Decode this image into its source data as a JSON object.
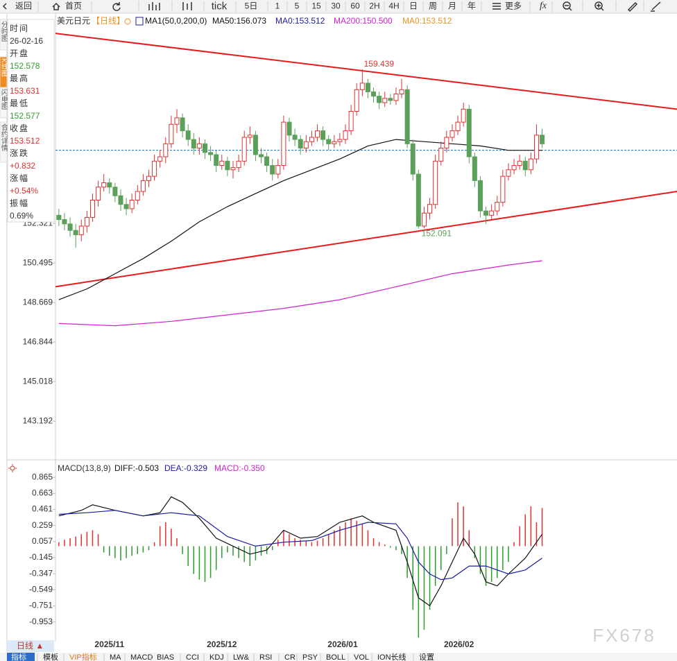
{
  "toolbar": {
    "items": [
      "返回",
      "首页",
      "tick",
      "5日",
      "1",
      "5",
      "15",
      "30",
      "60",
      "2H",
      "4H",
      "日",
      "周",
      "月",
      "年",
      "更多"
    ]
  },
  "sidebar": {
    "tabs": [
      "分时图",
      "K线图",
      "闪电图",
      "合约详情"
    ],
    "active": 1
  },
  "info_panel": {
    "rows": [
      {
        "label": "时间",
        "value": "26-02-16",
        "color": "#333333"
      },
      {
        "label": "开盘",
        "value": "152.578",
        "color": "#2e9a2e"
      },
      {
        "label": "最高",
        "value": "153.631",
        "color": "#e0312f"
      },
      {
        "label": "最低",
        "value": "152.577",
        "color": "#2e9a2e"
      },
      {
        "label": "收盘",
        "value": "153.512",
        "color": "#e0312f"
      },
      {
        "label": "涨跌",
        "value": "+0.832",
        "color": "#e0312f"
      },
      {
        "label": "涨幅",
        "value": "+0.54%",
        "color": "#e0312f"
      },
      {
        "label": "振幅",
        "value": "0.69%",
        "color": "#333333"
      }
    ]
  },
  "chart_data": [
    {
      "type": "candlestick",
      "title": "美元日元",
      "period": "【日线】",
      "up_color": "#e0312f",
      "down_color": "#5aa05a",
      "xlim": [
        -0.6,
        110.0
      ],
      "ylim": [
        141.5,
        162.0
      ],
      "yticks": [
        152.321,
        150.495,
        148.669,
        146.844,
        145.018,
        143.192
      ],
      "last_price_line": 155.7,
      "legend": [
        {
          "text": "MA1(50,0,200,0)",
          "color": "#111111"
        },
        {
          "text": "MA0:153.512",
          "color": "#1a1aa6"
        },
        {
          "text": "MA0:153.512",
          "color": "#f0901e"
        }
      ],
      "candles": [
        [
          152.7,
          153.0,
          152.2,
          152.5
        ],
        [
          152.5,
          152.8,
          152.0,
          152.3
        ],
        [
          152.3,
          152.6,
          151.7,
          152.0
        ],
        [
          152.0,
          152.3,
          151.2,
          151.8
        ],
        [
          151.8,
          152.5,
          151.5,
          152.2
        ],
        [
          152.2,
          152.9,
          151.9,
          152.6
        ],
        [
          152.6,
          153.7,
          152.4,
          153.4
        ],
        [
          153.4,
          154.3,
          153.1,
          154.0
        ],
        [
          154.0,
          154.6,
          153.8,
          154.2
        ],
        [
          154.2,
          154.4,
          153.7,
          154.0
        ],
        [
          154.0,
          154.2,
          153.3,
          153.6
        ],
        [
          153.6,
          153.9,
          152.9,
          153.2
        ],
        [
          153.2,
          153.5,
          152.7,
          153.0
        ],
        [
          153.0,
          153.7,
          152.8,
          153.4
        ],
        [
          153.4,
          154.1,
          153.2,
          153.8
        ],
        [
          153.8,
          154.6,
          153.6,
          154.3
        ],
        [
          154.3,
          154.8,
          154.0,
          154.5
        ],
        [
          154.5,
          155.5,
          154.3,
          155.2
        ],
        [
          155.2,
          155.7,
          154.9,
          155.4
        ],
        [
          155.4,
          156.3,
          155.1,
          156.0
        ],
        [
          156.0,
          157.3,
          155.8,
          156.9
        ],
        [
          156.9,
          157.6,
          156.5,
          157.2
        ],
        [
          157.2,
          157.4,
          156.3,
          156.6
        ],
        [
          156.6,
          156.9,
          155.9,
          156.2
        ],
        [
          156.2,
          156.5,
          155.5,
          155.8
        ],
        [
          155.8,
          156.3,
          155.5,
          156.0
        ],
        [
          156.0,
          156.2,
          155.3,
          155.6
        ],
        [
          155.6,
          155.9,
          155.2,
          155.5
        ],
        [
          155.5,
          155.7,
          154.7,
          155.0
        ],
        [
          155.0,
          155.5,
          154.8,
          155.2
        ],
        [
          155.2,
          155.4,
          154.5,
          154.8
        ],
        [
          154.8,
          155.2,
          154.4,
          154.9
        ],
        [
          154.9,
          155.5,
          154.7,
          155.2
        ],
        [
          155.2,
          156.6,
          155.0,
          156.3
        ],
        [
          156.3,
          156.8,
          156.0,
          156.4
        ],
        [
          156.4,
          156.6,
          155.2,
          155.5
        ],
        [
          155.5,
          155.8,
          155.1,
          155.4
        ],
        [
          155.4,
          155.6,
          154.7,
          155.0
        ],
        [
          155.0,
          155.3,
          154.3,
          154.6
        ],
        [
          154.6,
          155.3,
          154.4,
          155.0
        ],
        [
          155.0,
          157.3,
          154.8,
          157.0
        ],
        [
          157.0,
          157.2,
          156.1,
          156.4
        ],
        [
          156.4,
          156.7,
          155.9,
          156.2
        ],
        [
          156.2,
          156.4,
          155.5,
          155.8
        ],
        [
          155.8,
          156.4,
          155.6,
          156.1
        ],
        [
          156.1,
          156.6,
          155.9,
          156.3
        ],
        [
          156.3,
          156.9,
          156.1,
          156.6
        ],
        [
          156.6,
          156.8,
          155.9,
          156.2
        ],
        [
          156.2,
          156.4,
          155.7,
          156.0
        ],
        [
          156.0,
          156.4,
          155.8,
          156.1
        ],
        [
          156.1,
          156.5,
          155.9,
          156.2
        ],
        [
          156.2,
          156.9,
          156.0,
          156.6
        ],
        [
          156.6,
          157.8,
          156.4,
          157.5
        ],
        [
          157.5,
          158.8,
          157.3,
          158.5
        ],
        [
          158.5,
          159.439,
          158.2,
          158.8
        ],
        [
          158.8,
          159.0,
          158.1,
          158.4
        ],
        [
          158.4,
          158.6,
          157.9,
          158.2
        ],
        [
          158.2,
          158.4,
          157.6,
          157.9
        ],
        [
          157.9,
          158.4,
          157.7,
          158.1
        ],
        [
          158.1,
          158.3,
          157.8,
          158.0
        ],
        [
          158.0,
          158.6,
          157.8,
          158.3
        ],
        [
          158.3,
          159.0,
          158.1,
          158.5
        ],
        [
          158.5,
          158.7,
          155.8,
          156.0
        ],
        [
          156.0,
          156.2,
          154.3,
          154.6
        ],
        [
          154.6,
          154.8,
          152.091,
          152.2
        ],
        [
          152.2,
          153.1,
          152.1,
          152.8
        ],
        [
          152.8,
          153.5,
          152.5,
          153.2
        ],
        [
          153.2,
          155.5,
          153.0,
          155.2
        ],
        [
          155.2,
          156.1,
          155.0,
          155.8
        ],
        [
          155.8,
          156.6,
          155.6,
          156.3
        ],
        [
          156.3,
          156.9,
          156.1,
          156.6
        ],
        [
          156.6,
          157.3,
          156.4,
          157.0
        ],
        [
          157.0,
          157.9,
          156.8,
          157.6
        ],
        [
          157.6,
          157.8,
          155.1,
          155.4
        ],
        [
          155.4,
          155.6,
          154.0,
          154.3
        ],
        [
          154.3,
          154.5,
          152.6,
          152.9
        ],
        [
          152.9,
          153.1,
          152.3,
          152.7
        ],
        [
          152.7,
          153.2,
          152.5,
          152.9
        ],
        [
          152.9,
          153.6,
          152.7,
          153.3
        ],
        [
          153.3,
          154.8,
          153.1,
          154.5
        ],
        [
          154.5,
          155.1,
          154.3,
          154.8
        ],
        [
          154.8,
          155.3,
          154.6,
          155.0
        ],
        [
          155.0,
          155.5,
          154.8,
          155.2
        ],
        [
          155.2,
          155.4,
          154.5,
          154.8
        ],
        [
          154.8,
          155.6,
          154.6,
          155.3
        ],
        [
          155.3,
          156.9,
          155.1,
          156.4
        ],
        [
          156.4,
          156.7,
          155.8,
          156.0
        ]
      ],
      "series": [
        {
          "name": "MA50:156.073",
          "color": "#111111",
          "x": [
            0,
            5,
            10,
            15,
            20,
            25,
            30,
            35,
            40,
            45,
            50,
            55,
            60,
            65,
            70,
            75,
            80,
            86
          ],
          "values": [
            148.8,
            149.3,
            150.0,
            150.7,
            151.5,
            152.4,
            153.1,
            153.7,
            154.3,
            154.8,
            155.3,
            155.9,
            156.2,
            156.1,
            156.0,
            155.9,
            155.7,
            155.7
          ]
        },
        {
          "name": "MA200:150.500",
          "color": "#d21ed2",
          "x": [
            0,
            10,
            20,
            30,
            40,
            50,
            60,
            70,
            80,
            86
          ],
          "values": [
            147.7,
            147.6,
            147.8,
            148.1,
            148.4,
            148.8,
            149.4,
            150.0,
            150.4,
            150.6
          ]
        }
      ],
      "trendlines": [
        {
          "start": 161.1,
          "end": 157.6,
          "color": "#e8191b"
        },
        {
          "start": 149.4,
          "end": 153.8,
          "color": "#e8191b"
        }
      ],
      "xticks": [
        {
          "value": 9,
          "label": "2025/11"
        },
        {
          "value": 29,
          "label": "2025/12"
        },
        {
          "value": 50.5,
          "label": "2026/01"
        },
        {
          "value": 71.2,
          "label": "2026/02"
        }
      ]
    },
    {
      "type": "macd",
      "title": "MACD(13,8,9)",
      "xlim": [
        -0.6,
        110.0
      ],
      "ylim": [
        -1.2,
        1.05
      ],
      "yticks": [
        0.865,
        0.663,
        0.461,
        0.259,
        0.057,
        -0.145,
        -0.347,
        -0.549,
        -0.751,
        -0.953
      ],
      "histogram": {
        "name": "MACD:-0.350",
        "color": "#d21ed2",
        "up_color": "#e0312f",
        "down_color": "#2e9a2e",
        "values": [
          0.05,
          0.08,
          0.1,
          0.12,
          0.15,
          0.18,
          0.2,
          0.15,
          -0.08,
          -0.12,
          -0.15,
          -0.18,
          -0.15,
          -0.12,
          -0.1,
          -0.08,
          -0.05,
          0.05,
          0.25,
          0.3,
          0.22,
          0.1,
          -0.1,
          -0.25,
          -0.35,
          -0.42,
          -0.45,
          -0.4,
          -0.3,
          -0.15,
          -0.08,
          -0.12,
          -0.15,
          -0.2,
          -0.25,
          -0.18,
          -0.12,
          -0.1,
          -0.05,
          0.08,
          0.2,
          0.15,
          0.1,
          0.08,
          0.06,
          0.05,
          0.07,
          0.1,
          0.15,
          0.2,
          0.25,
          0.3,
          0.35,
          0.32,
          0.28,
          0.2,
          0.1,
          0.05,
          0.02,
          -0.02,
          -0.05,
          -0.1,
          -0.4,
          -0.8,
          -1.15,
          -1.05,
          -0.8,
          -0.5,
          -0.3,
          -0.1,
          0.35,
          0.55,
          0.5,
          0.2,
          -0.15,
          -0.35,
          -0.5,
          -0.45,
          -0.4,
          -0.3,
          -0.2,
          0.05,
          0.25,
          0.4,
          0.5,
          0.3,
          0.48
        ]
      },
      "series": [
        {
          "name": "DIFF:-0.503",
          "color": "#111111",
          "x": [
            0,
            4,
            6,
            10,
            15,
            18,
            20,
            22,
            25,
            28,
            31,
            34,
            37,
            40,
            43,
            46,
            50,
            54,
            56,
            60,
            62,
            64,
            66,
            68,
            70,
            72,
            74,
            76,
            78,
            80,
            83,
            86
          ],
          "values": [
            0.38,
            0.45,
            0.52,
            0.45,
            0.38,
            0.42,
            0.62,
            0.55,
            0.35,
            0.1,
            0.0,
            -0.1,
            -0.05,
            0.2,
            0.1,
            0.12,
            0.3,
            0.38,
            0.3,
            0.2,
            -0.2,
            -0.65,
            -0.75,
            -0.5,
            -0.2,
            0.1,
            -0.1,
            -0.45,
            -0.5,
            -0.35,
            -0.15,
            0.15
          ]
        },
        {
          "name": "DEA:-0.329",
          "color": "#1a1aa6",
          "x": [
            0,
            5,
            10,
            15,
            20,
            25,
            30,
            35,
            40,
            45,
            50,
            55,
            60,
            62,
            64,
            66,
            68,
            70,
            73,
            76,
            80,
            83,
            86
          ],
          "values": [
            0.4,
            0.42,
            0.45,
            0.38,
            0.42,
            0.38,
            0.12,
            0.0,
            0.05,
            0.07,
            0.2,
            0.3,
            0.28,
            0.1,
            -0.2,
            -0.35,
            -0.42,
            -0.4,
            -0.25,
            -0.25,
            -0.35,
            -0.3,
            -0.15
          ]
        }
      ]
    }
  ],
  "bottom_bar": {
    "period": "日线 ▲",
    "tabs": [
      "指标",
      "模板",
      "VIP指标",
      "MA",
      "MACD",
      "BIAS",
      "CCI",
      "KDJ",
      "LW&",
      "RSI",
      "CR",
      "PSY",
      "BOLL",
      "VOL",
      "ION长线",
      "设置"
    ]
  },
  "watermark": "FX678"
}
